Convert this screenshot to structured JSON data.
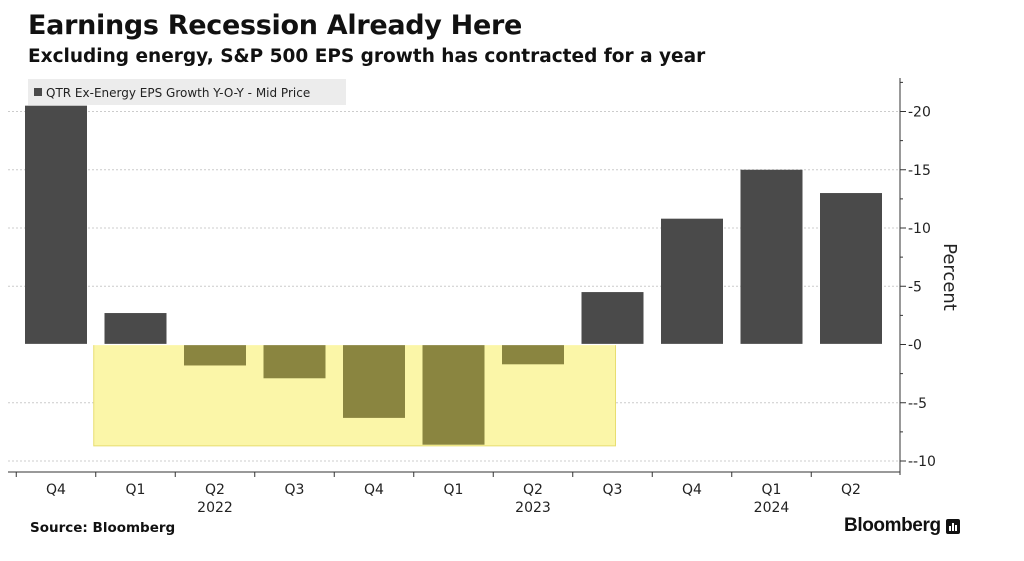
{
  "header": {
    "title": "Earnings Recession Already Here",
    "subtitle": "Excluding energy, S&P 500 EPS growth has contracted for a year"
  },
  "footer": {
    "source": "Source: Bloomberg",
    "brand": "Bloomberg"
  },
  "colors": {
    "bar": "#4a4a4a",
    "bar_highlighted": "#8a8540",
    "highlight": "#fbf6a8",
    "grid": "#cccccc",
    "legend_bg": "#ececec"
  },
  "chart_data": {
    "type": "bar",
    "categories": [
      "Q4",
      "Q1",
      "Q2",
      "Q3",
      "Q4",
      "Q1",
      "Q2",
      "Q3",
      "Q4",
      "Q1",
      "Q2"
    ],
    "year_labels": [
      {
        "label": "2022",
        "category_index": 2
      },
      {
        "label": "2023",
        "category_index": 6
      },
      {
        "label": "2024",
        "category_index": 9
      }
    ],
    "series": [
      {
        "name": "QTR Ex-Energy EPS Growth Y-O-Y - Mid Price",
        "values": [
          20.5,
          2.7,
          -1.8,
          -2.9,
          -6.3,
          -8.6,
          -1.7,
          4.5,
          10.8,
          15.0,
          13.0
        ]
      }
    ],
    "highlight": {
      "from_index": 1,
      "to_index": 7,
      "y_range": [
        -8.7,
        0
      ]
    },
    "ylabel": "Percent",
    "yaxis_position": "right",
    "ylim": [
      -10.5,
      23
    ],
    "yticks": [
      20,
      15,
      10,
      5,
      0,
      -5,
      -10
    ],
    "grid": true,
    "legend_position": "top-left"
  }
}
